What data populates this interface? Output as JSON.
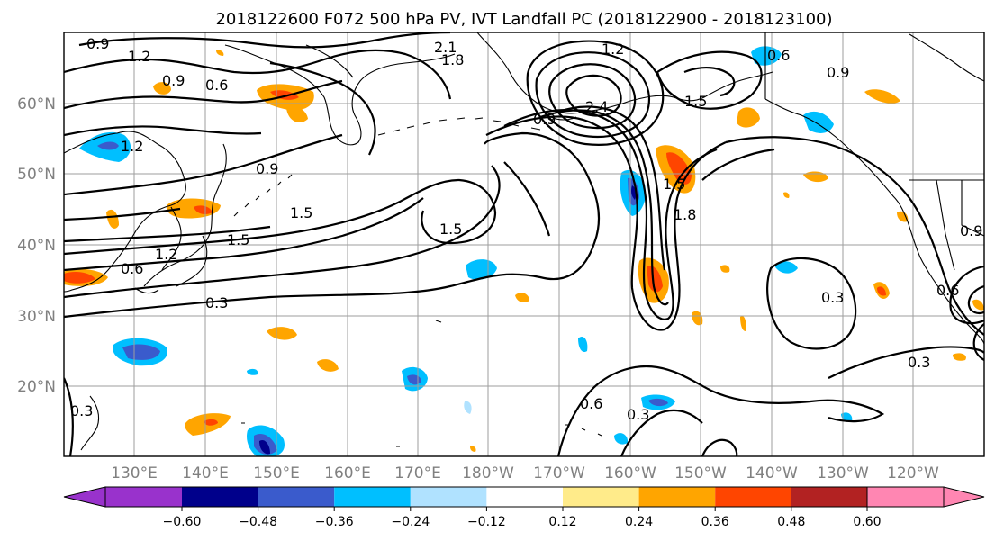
{
  "title": "2018122600 F072 500 hPa PV, IVT Landfall PC (2018122900 - 2018123100)",
  "map": {
    "lat_labels": [
      "60°N",
      "50°N",
      "40°N",
      "30°N",
      "20°N"
    ],
    "lon_labels": [
      "130°E",
      "140°E",
      "150°E",
      "160°E",
      "170°E",
      "180°W",
      "170°W",
      "160°W",
      "150°W",
      "140°W",
      "130°W",
      "120°W"
    ],
    "contour_labels": [
      "0.9",
      "1.2",
      "0.6",
      "0.9",
      "1.2",
      "2.1",
      "1.8",
      "1.2",
      "2.4",
      "1.5",
      "0.6",
      "0.9",
      "0.9",
      "0.9",
      "1.5",
      "1.5",
      "1.5",
      "1.2",
      "0.6",
      "0.3",
      "1.8",
      "1.5",
      "0.3",
      "0.6",
      "0.3",
      "0.3",
      "0.9",
      "0.6",
      "0.3"
    ],
    "colorbar": {
      "ticks": [
        "−0.60",
        "−0.48",
        "−0.36",
        "−0.24",
        "−0.12",
        "0.12",
        "0.24",
        "0.36",
        "0.48",
        "0.60"
      ],
      "colors": [
        "#9932cc",
        "#00008b",
        "#3a5bcc",
        "#00bfff",
        "#b0e2ff",
        "#ffffff",
        "#ffeb8a",
        "#ffa500",
        "#ff4500",
        "#b22222",
        "#ff86b2"
      ]
    },
    "grid": true
  }
}
